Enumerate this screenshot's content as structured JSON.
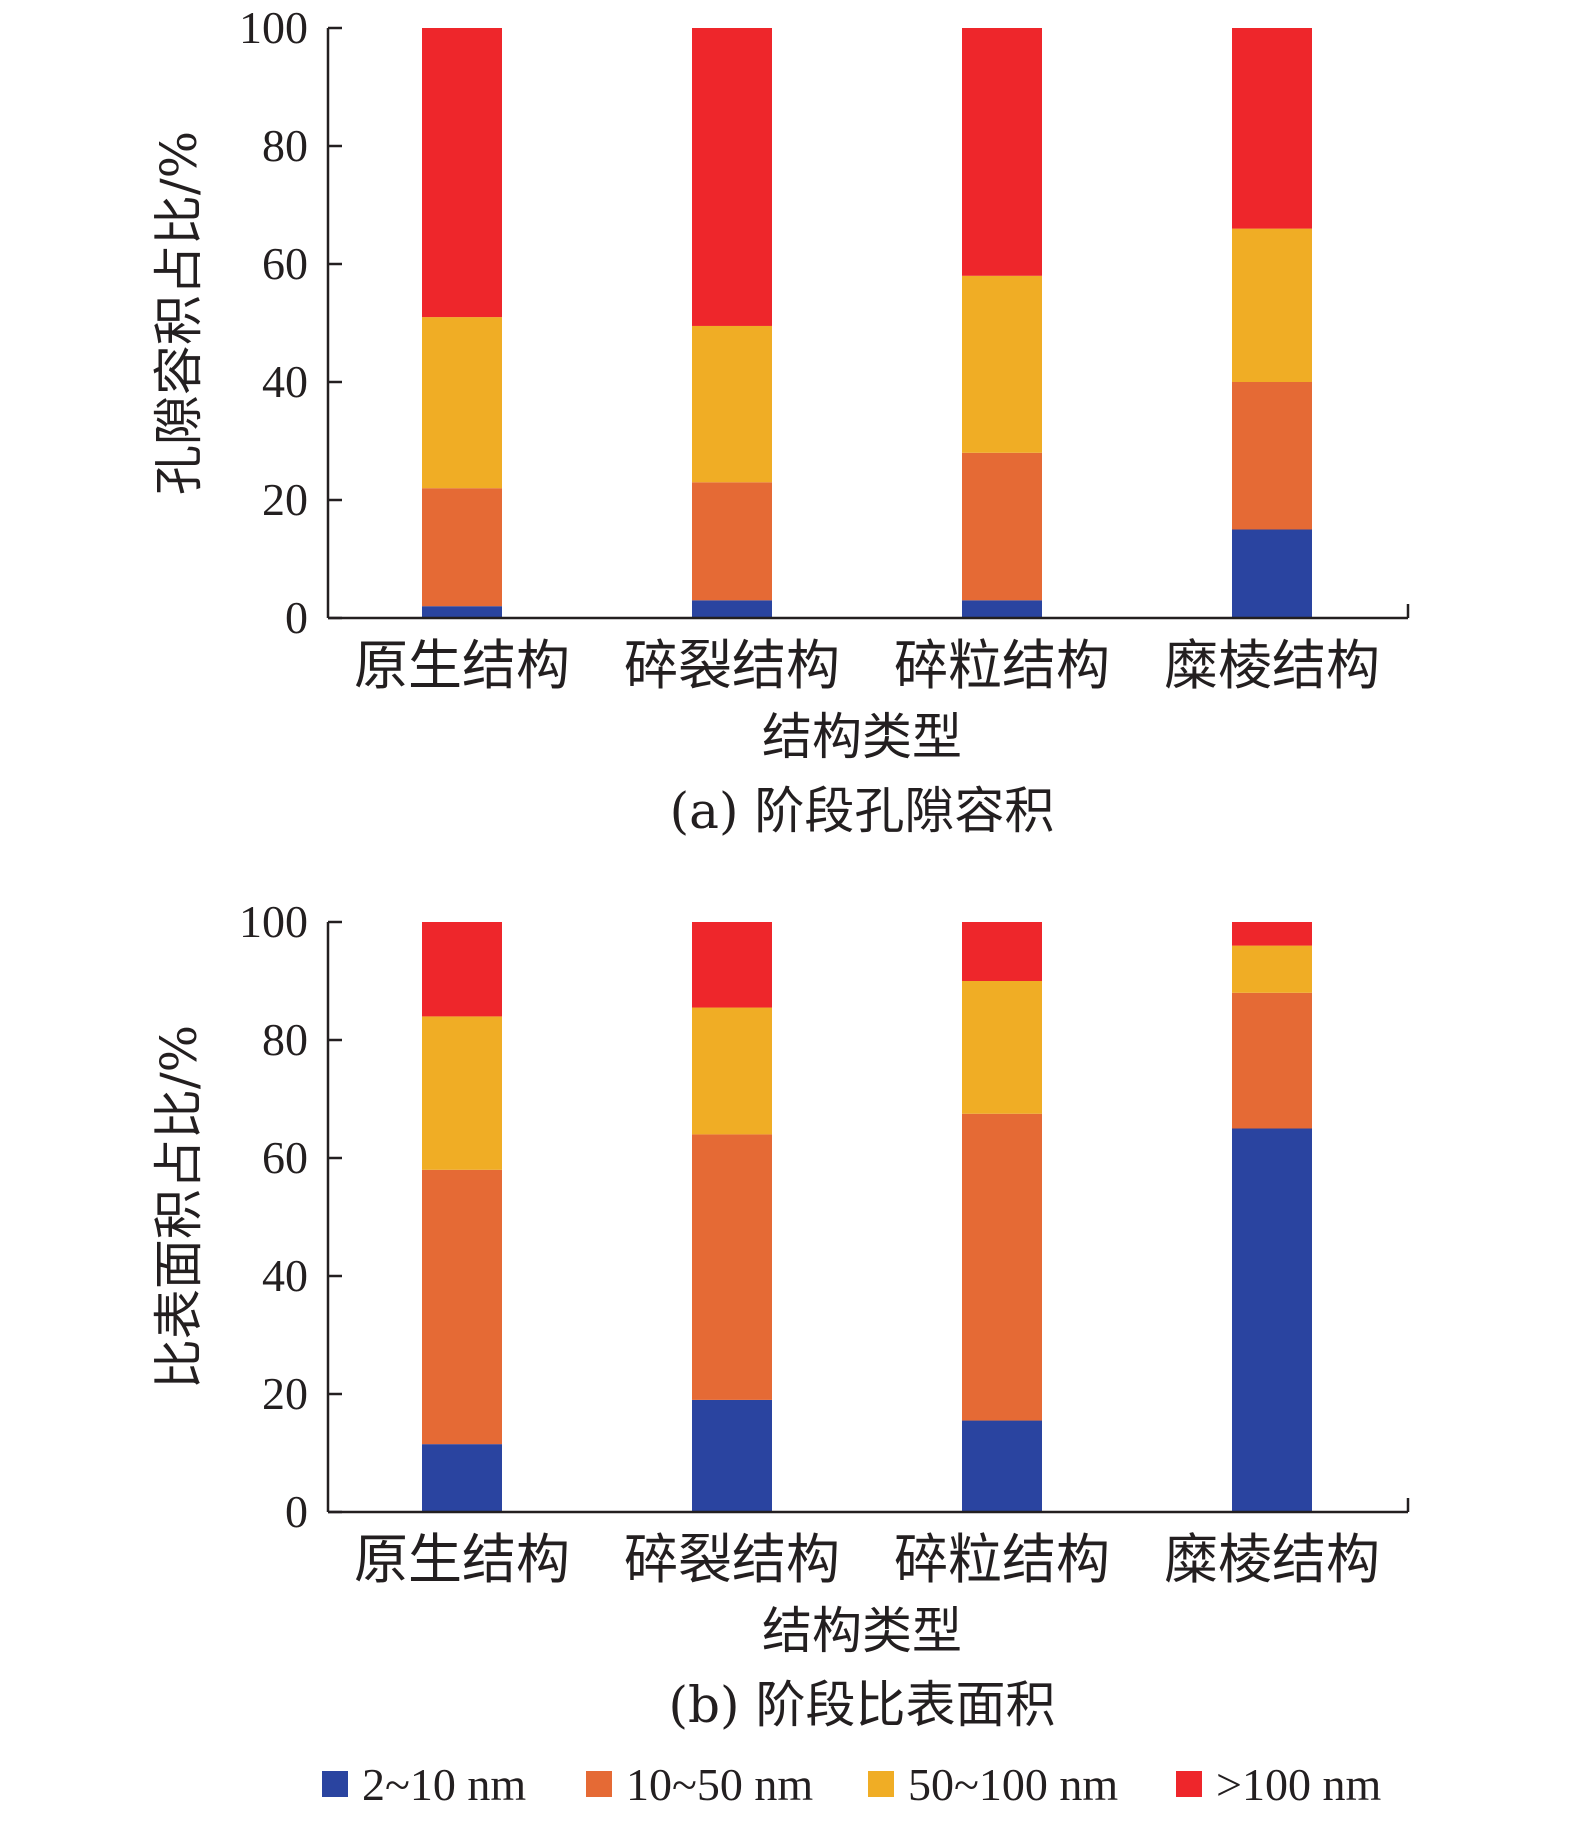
{
  "colors": {
    "2~10 nm": "#2a44a0",
    "10~50 nm": "#e56a35",
    "50~100 nm": "#f0ad25",
    ">100 nm": "#ee262b",
    "axis": "#231f20"
  },
  "legend": {
    "items": [
      {
        "label": "2~10 nm",
        "color": "#2a44a0"
      },
      {
        "label": "10~50 nm",
        "color": "#e56a35"
      },
      {
        "label": "50~100 nm",
        "color": "#f0ad25"
      },
      {
        "label": ">100 nm",
        "color": "#ee262b"
      }
    ]
  },
  "chart_data": [
    {
      "type": "bar",
      "stacked": true,
      "caption": "(a) 阶段孔隙容积",
      "xlabel": "结构类型",
      "ylabel": "孔隙容积占比/%",
      "ylim": [
        0,
        100
      ],
      "yticks": [
        0,
        20,
        40,
        60,
        80,
        100
      ],
      "categories": [
        "原生结构",
        "碎裂结构",
        "碎粒结构",
        "糜棱结构"
      ],
      "series": [
        {
          "name": "2~10 nm",
          "values": [
            2,
            3,
            3,
            15
          ]
        },
        {
          "name": "10~50 nm",
          "values": [
            20,
            20,
            25,
            25
          ]
        },
        {
          "name": "50~100 nm",
          "values": [
            29,
            26.5,
            30,
            26
          ]
        },
        {
          "name": ">100 nm",
          "values": [
            49,
            50.5,
            42,
            34
          ]
        }
      ],
      "grid": false
    },
    {
      "type": "bar",
      "stacked": true,
      "caption": "(b) 阶段比表面积",
      "xlabel": "结构类型",
      "ylabel": "比表面积占比/%",
      "ylim": [
        0,
        100
      ],
      "yticks": [
        0,
        20,
        40,
        60,
        80,
        100
      ],
      "categories": [
        "原生结构",
        "碎裂结构",
        "碎粒结构",
        "糜棱结构"
      ],
      "series": [
        {
          "name": "2~10 nm",
          "values": [
            11.5,
            19,
            15.5,
            65
          ]
        },
        {
          "name": "10~50 nm",
          "values": [
            46.5,
            45,
            52,
            23
          ]
        },
        {
          "name": "50~100 nm",
          "values": [
            26,
            21.5,
            22.5,
            8
          ]
        },
        {
          "name": ">100 nm",
          "values": [
            16,
            14.5,
            10,
            4
          ]
        }
      ],
      "grid": false
    }
  ]
}
